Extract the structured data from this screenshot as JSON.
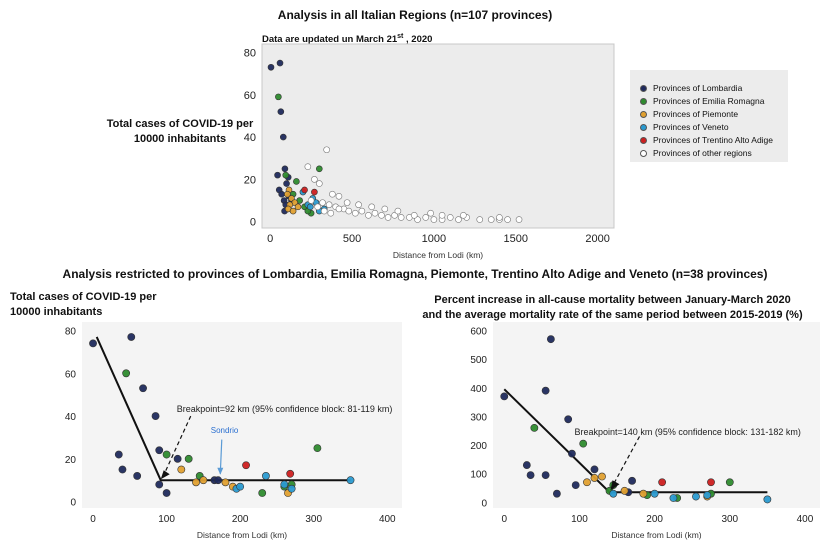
{
  "top": {
    "title": "Analysis in all Italian Regions (n=107 provinces)",
    "note_prefix": "Data are updated un March 21",
    "note_sup": "st",
    "note_suffix": " , 2020",
    "ylabel_line1": "Total cases of COVID-19 per",
    "ylabel_line2": "10000 inhabitants"
  },
  "bottom": {
    "title": "Analysis restricted to provinces of Lombardia, Emilia Romagna, Piemonte, Trentino Alto Adige  and Veneto (n=38 provinces)",
    "left_ylabel_line1": "Total cases of COVID-19 per",
    "left_ylabel_line2": "10000 inhabitants",
    "right_ylabel_line1": "Percent increase in all-cause mortality between January-March 2020",
    "right_ylabel_line2": "and the average mortality rate of the same period between 2015-2019 (%)"
  },
  "legend": {
    "items": [
      {
        "label": "Provinces of Lombardia",
        "color": "#1f2a5c"
      },
      {
        "label": "Provinces of Emilia Romagna",
        "color": "#2e8b2e"
      },
      {
        "label": "Provinces of Piemonte",
        "color": "#e0a030"
      },
      {
        "label": "Provinces of Veneto",
        "color": "#2a9ad0"
      },
      {
        "label": "Provinces of Trentino Alto Adige",
        "color": "#cc1f1f"
      },
      {
        "label": "Provinces of other regions",
        "color": "#ffffff"
      }
    ]
  },
  "chart_data": [
    {
      "type": "scatter",
      "xlabel": "Distance from Lodi (km)",
      "ylabel": "Total cases of COVID-19 per 10000 inhabitants",
      "xlim": [
        -50,
        2100
      ],
      "ylim": [
        -3,
        84
      ],
      "xticks": [
        0,
        500,
        1000,
        1500,
        2000
      ],
      "yticks": [
        0,
        20,
        40,
        60,
        80
      ],
      "series": [
        {
          "name": "Provinces of Lombardia",
          "color": "#1f2a5c",
          "points": [
            [
              5,
              73
            ],
            [
              60,
              75
            ],
            [
              65,
              52
            ],
            [
              80,
              40
            ],
            [
              45,
              22
            ],
            [
              90,
              25
            ],
            [
              55,
              15
            ],
            [
              70,
              13
            ],
            [
              110,
              21
            ],
            [
              100,
              18
            ],
            [
              85,
              10
            ],
            [
              95,
              8
            ],
            [
              115,
              12
            ],
            [
              130,
              10
            ],
            [
              88,
              5
            ]
          ]
        },
        {
          "name": "Provinces of Emilia Romagna",
          "color": "#2e8b2e",
          "points": [
            [
              50,
              59
            ],
            [
              95,
              22
            ],
            [
              160,
              19
            ],
            [
              300,
              25
            ],
            [
              140,
              13
            ],
            [
              180,
              10
            ],
            [
              210,
              7
            ],
            [
              250,
              4
            ],
            [
              230,
              5
            ]
          ]
        },
        {
          "name": "Provinces of Piemonte",
          "color": "#e0a030",
          "points": [
            [
              115,
              15
            ],
            [
              105,
              13
            ],
            [
              130,
              11
            ],
            [
              150,
              9
            ],
            [
              120,
              8
            ],
            [
              170,
              7
            ],
            [
              110,
              6
            ],
            [
              140,
              5
            ]
          ]
        },
        {
          "name": "Provinces of Veneto",
          "color": "#2a9ad0",
          "points": [
            [
              200,
              14
            ],
            [
              260,
              11
            ],
            [
              230,
              8
            ],
            [
              280,
              9
            ],
            [
              245,
              7
            ],
            [
              330,
              6
            ],
            [
              300,
              5
            ]
          ]
        },
        {
          "name": "Provinces of Trentino Alto Adige",
          "color": "#cc1f1f",
          "points": [
            [
              210,
              15
            ],
            [
              270,
              14
            ]
          ]
        },
        {
          "name": "Provinces of other regions",
          "color": "#ffffff",
          "points": [
            [
              345,
              34
            ],
            [
              230,
              26
            ],
            [
              270,
              20
            ],
            [
              300,
              18
            ],
            [
              380,
              13
            ],
            [
              420,
              12
            ],
            [
              250,
              10
            ],
            [
              320,
              9
            ],
            [
              360,
              8
            ],
            [
              400,
              7
            ],
            [
              450,
              6
            ],
            [
              480,
              5
            ],
            [
              520,
              4
            ],
            [
              560,
              5
            ],
            [
              600,
              3
            ],
            [
              640,
              4
            ],
            [
              680,
              3
            ],
            [
              720,
              2
            ],
            [
              760,
              3
            ],
            [
              800,
              2
            ],
            [
              850,
              2
            ],
            [
              900,
              1
            ],
            [
              950,
              2
            ],
            [
              1000,
              1
            ],
            [
              1050,
              1
            ],
            [
              1100,
              2
            ],
            [
              1150,
              1
            ],
            [
              1200,
              2
            ],
            [
              1280,
              1
            ],
            [
              1350,
              1
            ],
            [
              1400,
              1
            ],
            [
              1450,
              1
            ],
            [
              1520,
              1
            ],
            [
              1050,
              3
            ],
            [
              980,
              4
            ],
            [
              880,
              3
            ],
            [
              780,
              5
            ],
            [
              700,
              6
            ],
            [
              620,
              7
            ],
            [
              540,
              8
            ],
            [
              470,
              9
            ],
            [
              420,
              6
            ],
            [
              370,
              4
            ],
            [
              330,
              5
            ],
            [
              290,
              7
            ],
            [
              1400,
              2
            ],
            [
              1180,
              3
            ]
          ]
        }
      ]
    },
    {
      "type": "scatter",
      "xlabel": "Distance from Lodi (km)",
      "xlim": [
        -15,
        420
      ],
      "ylim": [
        -3,
        84
      ],
      "xticks": [
        0,
        100,
        200,
        300,
        400
      ],
      "yticks": [
        0,
        20,
        40,
        60,
        80
      ],
      "annotation": "Breakpoint=92 km (95% confidence block: 81-119 km)",
      "label": "Sondrio",
      "fit": [
        [
          5,
          77
        ],
        [
          92,
          10
        ],
        [
          350,
          10
        ]
      ],
      "series": [
        {
          "name": "Lombardia",
          "color": "#1f2a5c",
          "points": [
            [
              0,
              74
            ],
            [
              52,
              77
            ],
            [
              68,
              53
            ],
            [
              85,
              40
            ],
            [
              35,
              22
            ],
            [
              40,
              15
            ],
            [
              60,
              12
            ],
            [
              90,
              24
            ],
            [
              115,
              20
            ],
            [
              100,
              4
            ],
            [
              90,
              8
            ],
            [
              165,
              10
            ],
            [
              170,
              10
            ]
          ]
        },
        {
          "name": "Emilia Romagna",
          "color": "#2e8b2e",
          "points": [
            [
              45,
              60
            ],
            [
              100,
              22
            ],
            [
              130,
              20
            ],
            [
              145,
              12
            ],
            [
              230,
              4
            ],
            [
              305,
              25
            ],
            [
              260,
              7
            ],
            [
              270,
              8
            ]
          ]
        },
        {
          "name": "Piemonte",
          "color": "#e0a030",
          "points": [
            [
              120,
              15
            ],
            [
              150,
              10
            ],
            [
              180,
              9
            ],
            [
              190,
              7
            ],
            [
              265,
              4
            ],
            [
              140,
              9
            ]
          ]
        },
        {
          "name": "Veneto",
          "color": "#2a9ad0",
          "points": [
            [
              195,
              6
            ],
            [
              235,
              12
            ],
            [
              260,
              8
            ],
            [
              270,
              6
            ],
            [
              350,
              10
            ],
            [
              200,
              7
            ]
          ]
        },
        {
          "name": "Trentino Alto Adige",
          "color": "#cc1f1f",
          "points": [
            [
              208,
              17
            ],
            [
              268,
              13
            ]
          ]
        }
      ]
    },
    {
      "type": "scatter",
      "xlabel": "Distance from Lodi (km)",
      "xlim": [
        -15,
        420
      ],
      "ylim": [
        -20,
        630
      ],
      "xticks": [
        0,
        100,
        200,
        300,
        400
      ],
      "yticks": [
        0,
        100,
        200,
        300,
        400,
        500,
        600
      ],
      "annotation": "Breakpoint=140 km (95% confidence block: 131-182 km)",
      "fit": [
        [
          0,
          395
        ],
        [
          140,
          35
        ],
        [
          350,
          35
        ]
      ],
      "series": [
        {
          "name": "Lombardia",
          "color": "#1f2a5c",
          "points": [
            [
              0,
              370
            ],
            [
              62,
              570
            ],
            [
              55,
              390
            ],
            [
              85,
              290
            ],
            [
              30,
              130
            ],
            [
              35,
              95
            ],
            [
              55,
              95
            ],
            [
              70,
              30
            ],
            [
              90,
              170
            ],
            [
              120,
              115
            ],
            [
              95,
              60
            ],
            [
              170,
              75
            ],
            [
              165,
              35
            ]
          ]
        },
        {
          "name": "Emilia Romagna",
          "color": "#2e8b2e",
          "points": [
            [
              40,
              260
            ],
            [
              105,
              205
            ],
            [
              145,
              60
            ],
            [
              190,
              25
            ],
            [
              230,
              15
            ],
            [
              300,
              70
            ],
            [
              275,
              30
            ],
            [
              140,
              40
            ]
          ]
        },
        {
          "name": "Piemonte",
          "color": "#e0a030",
          "points": [
            [
              120,
              85
            ],
            [
              130,
              90
            ],
            [
              160,
              40
            ],
            [
              185,
              30
            ],
            [
              270,
              20
            ],
            [
              110,
              70
            ]
          ]
        },
        {
          "name": "Veneto",
          "color": "#2a9ad0",
          "points": [
            [
              145,
              30
            ],
            [
              200,
              30
            ],
            [
              255,
              20
            ],
            [
              270,
              25
            ],
            [
              350,
              10
            ],
            [
              225,
              15
            ]
          ]
        },
        {
          "name": "Trentino Alto Adige",
          "color": "#cc1f1f",
          "points": [
            [
              210,
              70
            ],
            [
              275,
              70
            ]
          ]
        }
      ]
    }
  ]
}
